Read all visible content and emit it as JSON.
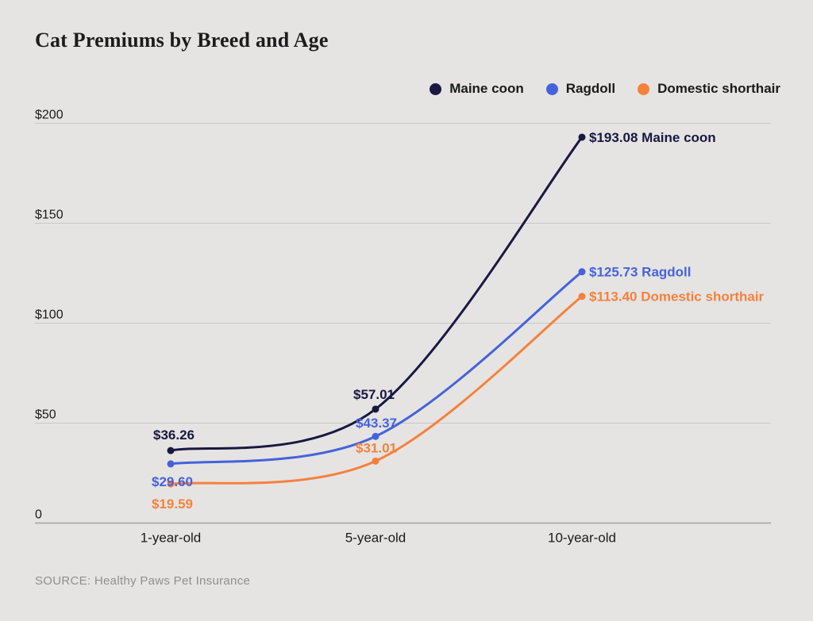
{
  "page": {
    "title": "Cat Premiums by Breed and Age"
  },
  "source": {
    "text": "SOURCE: Healthy Paws Pet Insurance"
  },
  "colors": {
    "background": "#E5E4E2",
    "grid": "#C9C8C6",
    "zero_axis": "#A3A2A0",
    "text": "#1A1A1A",
    "muted": "#8F8F8D"
  },
  "chart_data": {
    "type": "line",
    "title": "Cat Premiums by Breed and Age",
    "categories": [
      "1-year-old",
      "5-year-old",
      "10-year-old"
    ],
    "series": [
      {
        "name": "Maine coon",
        "color": "#181842",
        "values": [
          36.26,
          57.01,
          193.08
        ],
        "point_labels": [
          "$36.26",
          "$57.01",
          "$193.08"
        ]
      },
      {
        "name": "Ragdoll",
        "color": "#4562DB",
        "values": [
          29.6,
          43.37,
          125.73
        ],
        "point_labels": [
          "$29.60",
          "$43.37",
          "$125.73"
        ]
      },
      {
        "name": "Domestic shorthair",
        "color": "#F6813C",
        "values": [
          19.59,
          31.01,
          113.4
        ],
        "point_labels": [
          "$19.59",
          "$31.01",
          "$113.40"
        ]
      }
    ],
    "yticks": [
      {
        "value": 0,
        "label": "0"
      },
      {
        "value": 50,
        "label": "$50"
      },
      {
        "value": 100,
        "label": "$100"
      },
      {
        "value": 150,
        "label": "$150"
      },
      {
        "value": 200,
        "label": "$200"
      }
    ],
    "xlabel": "",
    "ylabel": "",
    "ylim": [
      0,
      200
    ],
    "grid": "horizontal",
    "legend_position": "top-right"
  }
}
